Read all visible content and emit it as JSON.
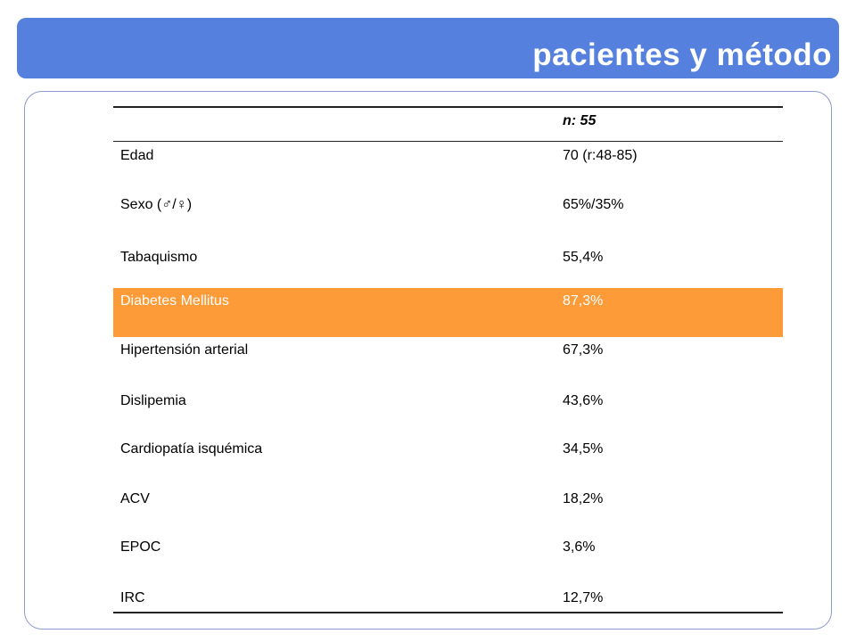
{
  "slide": {
    "title": "pacientes y método"
  },
  "table": {
    "header": "n: 55",
    "rows": [
      {
        "label": "Edad",
        "value": "70 (r:48-85)"
      },
      {
        "label": "Sexo (♂/♀)",
        "value": "65%/35%"
      },
      {
        "label": "Tabaquismo",
        "value": "55,4%"
      },
      {
        "label": "Diabetes Mellitus",
        "value": "87,3%",
        "highlight_color": "#fc9b38"
      },
      {
        "label": "Hipertensión arterial",
        "value": "67,3%"
      },
      {
        "label": "Dislipemia",
        "value": "43,6%"
      },
      {
        "label": "Cardiopatía isquémica",
        "value": "34,5%"
      },
      {
        "label": "ACV",
        "value": "18,2%"
      },
      {
        "label": "EPOC",
        "value": "3,6%"
      },
      {
        "label": "IRC",
        "value": "12,7%"
      }
    ]
  },
  "colors": {
    "title_bar": "#5580dd",
    "frame_border": "#8a9ccc",
    "highlight": "#fc9b38"
  }
}
